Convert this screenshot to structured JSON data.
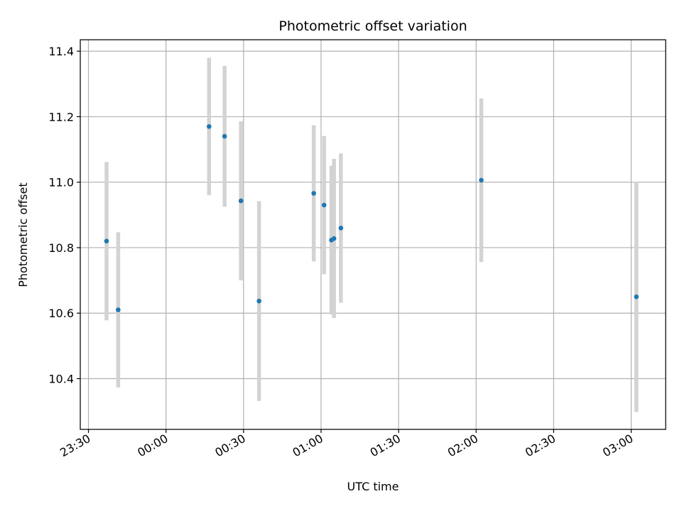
{
  "chart_data": {
    "type": "scatter",
    "title": "Photometric offset variation",
    "xlabel": "UTC time",
    "ylabel": "Photometric offset",
    "x_ticks": [
      "23:30",
      "00:00",
      "00:30",
      "01:00",
      "01:30",
      "02:00",
      "02:30",
      "03:00"
    ],
    "y_ticks": [
      "10.4",
      "10.6",
      "10.8",
      "11.0",
      "11.2",
      "11.4"
    ],
    "xlim": [
      "23:26:50",
      "03:13:20"
    ],
    "ylim": [
      10.245,
      11.435
    ],
    "grid": true,
    "colors": {
      "points": "#1f77b4",
      "errorbars": "#d3d3d3",
      "grid": "#b0b0b0"
    },
    "series": [
      {
        "points": [
          {
            "x": "23:37:00",
            "y": 10.82,
            "yerr": 0.242
          },
          {
            "x": "23:41:30",
            "y": 10.61,
            "yerr": 0.237
          },
          {
            "x": "00:16:40",
            "y": 11.17,
            "yerr": 0.21
          },
          {
            "x": "00:22:40",
            "y": 11.14,
            "yerr": 0.215
          },
          {
            "x": "00:29:00",
            "y": 10.943,
            "yerr": 0.243
          },
          {
            "x": "00:36:00",
            "y": 10.637,
            "yerr": 0.305
          },
          {
            "x": "00:57:10",
            "y": 10.966,
            "yerr": 0.208
          },
          {
            "x": "01:01:10",
            "y": 10.93,
            "yerr": 0.211
          },
          {
            "x": "01:04:00",
            "y": 10.823,
            "yerr": 0.227
          },
          {
            "x": "01:05:00",
            "y": 10.828,
            "yerr": 0.243
          },
          {
            "x": "01:07:40",
            "y": 10.86,
            "yerr": 0.228
          },
          {
            "x": "02:02:00",
            "y": 11.006,
            "yerr": 0.25
          },
          {
            "x": "03:02:00",
            "y": 10.65,
            "yerr": 0.352
          }
        ]
      }
    ]
  }
}
